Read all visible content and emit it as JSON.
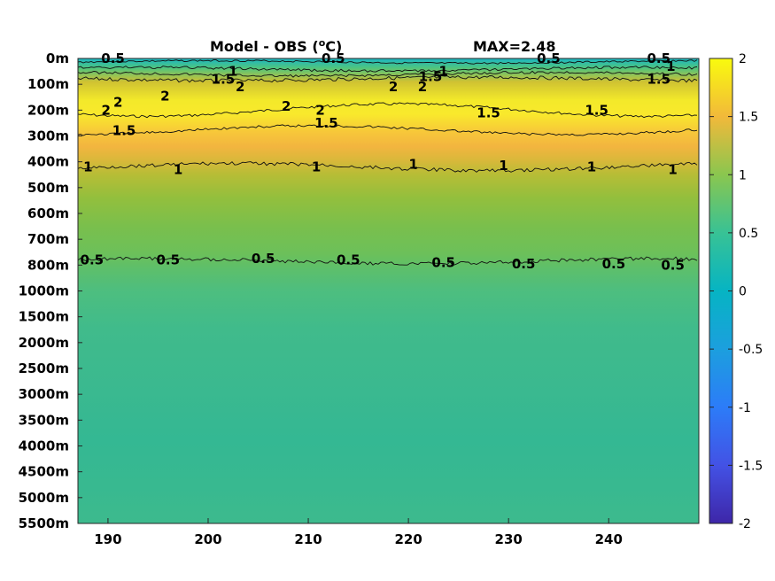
{
  "title_left": "Model - OBS (",
  "title_sup": "o",
  "title_unit": "C)",
  "title_right": "MAX=2.48",
  "chart_data": {
    "type": "heatmap",
    "title": "Model - OBS (oC)   MAX=2.48",
    "max_value": 2.48,
    "x_ticks": [
      190,
      200,
      210,
      220,
      230,
      240
    ],
    "x_tick_labels": [
      "190",
      "200",
      "210",
      "220",
      "230",
      "240"
    ],
    "xlim": [
      187,
      249
    ],
    "y_tick_labels": [
      "0m",
      "100m",
      "200m",
      "300m",
      "400m",
      "500m",
      "600m",
      "700m",
      "800m",
      "1000m",
      "1500m",
      "2000m",
      "2500m",
      "3000m",
      "3500m",
      "4000m",
      "4500m",
      "5000m",
      "5500m"
    ],
    "depth_profile": [
      {
        "depth": "0m",
        "value": 0.3
      },
      {
        "depth": "50m",
        "value": 0.6
      },
      {
        "depth": "100m",
        "value": 1.5
      },
      {
        "depth": "150m",
        "value": 2.0
      },
      {
        "depth": "200m",
        "value": 1.9
      },
      {
        "depth": "250m",
        "value": 1.6
      },
      {
        "depth": "300m",
        "value": 1.4
      },
      {
        "depth": "400m",
        "value": 1.1
      },
      {
        "depth": "500m",
        "value": 0.95
      },
      {
        "depth": "600m",
        "value": 0.8
      },
      {
        "depth": "700m",
        "value": 0.6
      },
      {
        "depth": "800m",
        "value": 0.45
      },
      {
        "depth": "1000m",
        "value": 0.35
      },
      {
        "depth": "1500m",
        "value": 0.3
      },
      {
        "depth": "2000m",
        "value": 0.28
      },
      {
        "depth": "3000m",
        "value": 0.25
      },
      {
        "depth": "4000m",
        "value": 0.28
      },
      {
        "depth": "5000m",
        "value": 0.3
      },
      {
        "depth": "5500m",
        "value": 0.3
      }
    ],
    "contours": [
      {
        "level": 0.5,
        "labels": [
          {
            "text": "0.5",
            "x": 190.5,
            "y": "0m"
          },
          {
            "text": "0.5",
            "x": 212.5,
            "y": "0m"
          },
          {
            "text": "0.5",
            "x": 234.0,
            "y": "0m"
          },
          {
            "text": "0.5",
            "x": 245.0,
            "y": "0m"
          },
          {
            "text": "0.5",
            "x": 188.4,
            "y": "780m"
          },
          {
            "text": "0.5",
            "x": 196.0,
            "y": "780m"
          },
          {
            "text": "0.5",
            "x": 205.5,
            "y": "775m"
          },
          {
            "text": "0.5",
            "x": 214.0,
            "y": "780m"
          },
          {
            "text": "0.5",
            "x": 223.5,
            "y": "790m"
          },
          {
            "text": "0.5",
            "x": 231.5,
            "y": "795m"
          },
          {
            "text": "0.5",
            "x": 240.5,
            "y": "795m"
          },
          {
            "text": "0.5",
            "x": 246.4,
            "y": "800m"
          }
        ]
      },
      {
        "level": 1,
        "labels": [
          {
            "text": "1",
            "x": 188.0,
            "y": "420m"
          },
          {
            "text": "1",
            "x": 197.0,
            "y": "430m"
          },
          {
            "text": "1",
            "x": 210.8,
            "y": "420m"
          },
          {
            "text": "1",
            "x": 220.5,
            "y": "410m"
          },
          {
            "text": "1",
            "x": 229.5,
            "y": "415m"
          },
          {
            "text": "1",
            "x": 238.3,
            "y": "420m"
          },
          {
            "text": "1",
            "x": 246.4,
            "y": "430m"
          },
          {
            "text": "1",
            "x": 202.5,
            "y": "50m"
          },
          {
            "text": "1",
            "x": 223.5,
            "y": "50m"
          },
          {
            "text": "1",
            "x": 246.2,
            "y": "30m"
          }
        ]
      },
      {
        "level": 1.5,
        "labels": [
          {
            "text": "1.5",
            "x": 201.5,
            "y": "80m"
          },
          {
            "text": "1.5",
            "x": 222.2,
            "y": "70m"
          },
          {
            "text": "1.5",
            "x": 245.0,
            "y": "80m"
          },
          {
            "text": "1.5",
            "x": 191.6,
            "y": "280m"
          },
          {
            "text": "1.5",
            "x": 211.8,
            "y": "250m"
          },
          {
            "text": "1.5",
            "x": 228.0,
            "y": "210m"
          },
          {
            "text": "1.5",
            "x": 238.8,
            "y": "200m"
          }
        ]
      },
      {
        "level": 2,
        "labels": [
          {
            "text": "2",
            "x": 189.8,
            "y": "200m"
          },
          {
            "text": "2",
            "x": 191.0,
            "y": "170m"
          },
          {
            "text": "2",
            "x": 195.7,
            "y": "145m"
          },
          {
            "text": "2",
            "x": 203.2,
            "y": "110m"
          },
          {
            "text": "2",
            "x": 207.8,
            "y": "185m"
          },
          {
            "text": "2",
            "x": 211.2,
            "y": "200m"
          },
          {
            "text": "2",
            "x": 218.5,
            "y": "110m"
          },
          {
            "text": "2",
            "x": 221.4,
            "y": "110m"
          }
        ]
      }
    ],
    "colorbar": {
      "colormap": "parula",
      "range": [
        -2,
        2
      ],
      "ticks": [
        "-2",
        "-1.5",
        "-1",
        "-0.5",
        "0",
        "0.5",
        "1",
        "1.5",
        "2"
      ]
    },
    "grid": false
  }
}
